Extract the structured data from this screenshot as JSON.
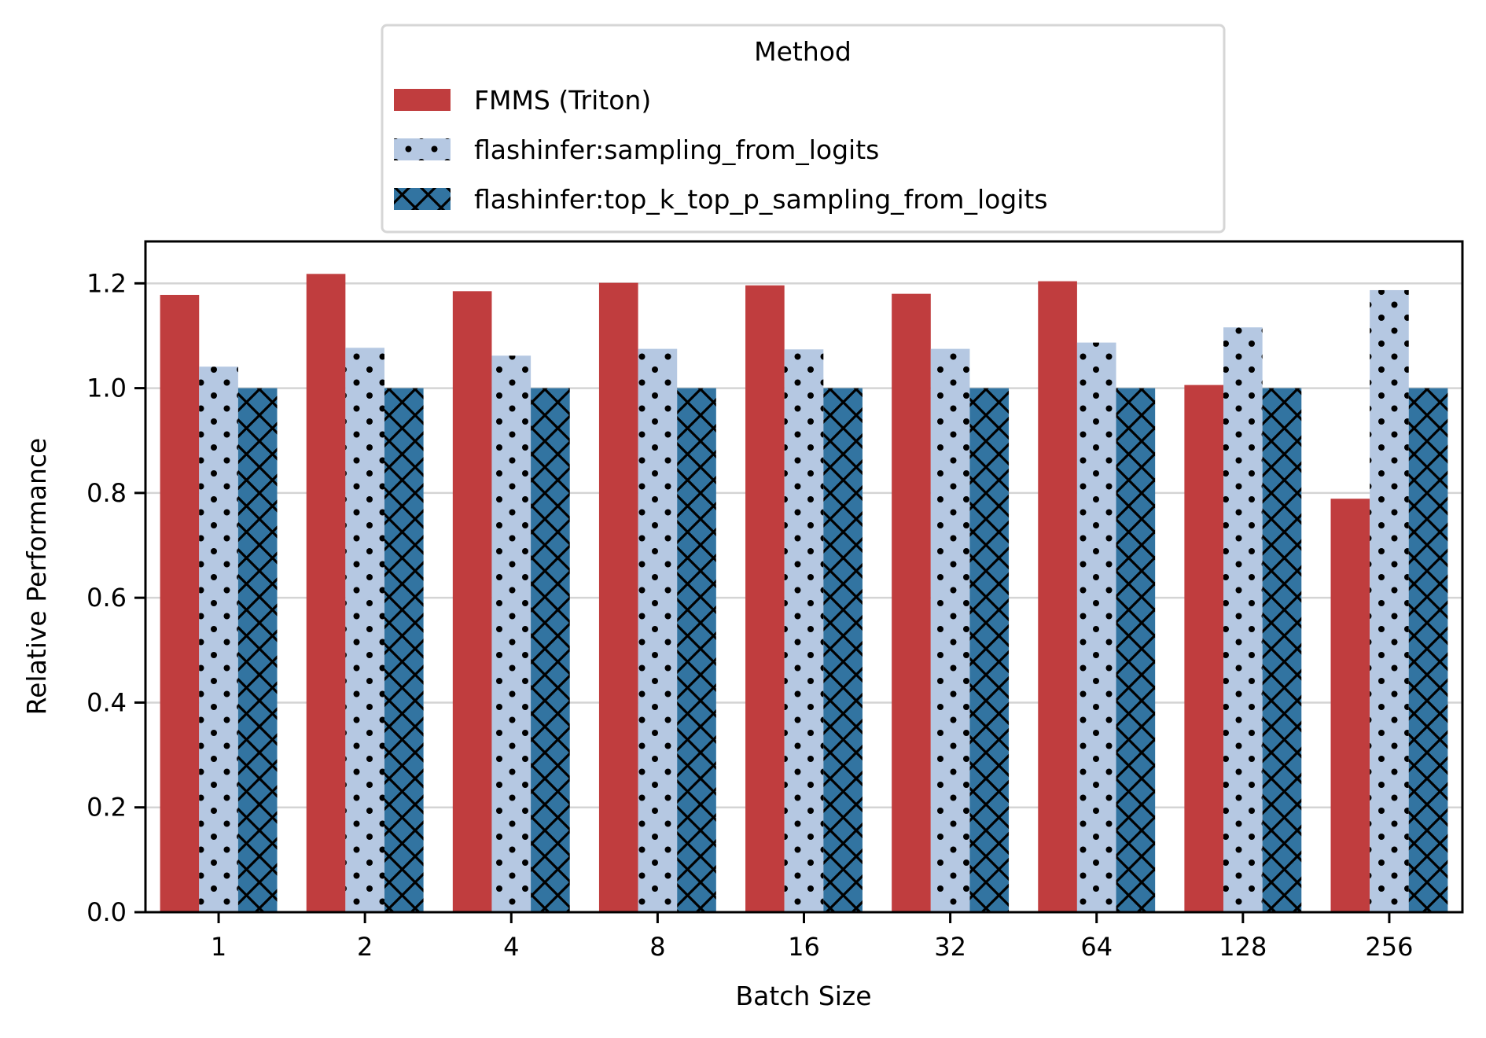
{
  "chart_data": {
    "type": "bar",
    "title": "",
    "xlabel": "Batch Size",
    "ylabel": "Relative Performance",
    "categories": [
      "1",
      "2",
      "4",
      "8",
      "16",
      "32",
      "64",
      "128",
      "256"
    ],
    "ylim": [
      0,
      1.28
    ],
    "yticks": [
      "0.0",
      "0.2",
      "0.4",
      "0.6",
      "0.8",
      "1.0",
      "1.2"
    ],
    "ytick_values": [
      0.0,
      0.2,
      0.4,
      0.6,
      0.8,
      1.0,
      1.2
    ],
    "grid": "horizontal",
    "legend": {
      "title": "Method",
      "placement": "top-center, above plot"
    },
    "series": [
      {
        "name": "FMMS (Triton)",
        "color": "#C03D3E",
        "pattern": "solid",
        "values": [
          1.178,
          1.218,
          1.185,
          1.201,
          1.196,
          1.18,
          1.204,
          1.006,
          0.789
        ]
      },
      {
        "name": "flashinfer:sampling_from_logits",
        "color": "#B5C8E2",
        "pattern": "dots",
        "values": [
          1.041,
          1.077,
          1.062,
          1.075,
          1.074,
          1.075,
          1.087,
          1.116,
          1.187
        ]
      },
      {
        "name": "flashinfer:top_k_top_p_sampling_from_logits",
        "color": "#3274A1",
        "pattern": "crosshatch",
        "values": [
          1.0,
          1.0,
          1.0,
          1.0,
          1.0,
          1.0,
          1.0,
          1.0,
          1.0
        ]
      }
    ]
  }
}
